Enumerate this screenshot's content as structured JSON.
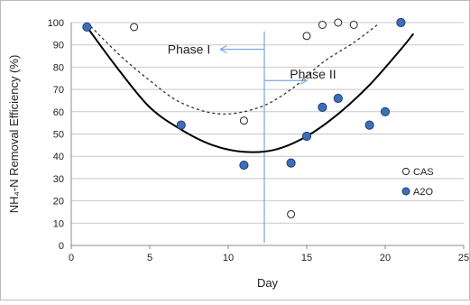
{
  "chart_data": {
    "type": "scatter",
    "xlabel": "Day",
    "ylabel": "NH₄-N Removal Efficiency (%)",
    "xlim": [
      0,
      25
    ],
    "ylim": [
      0,
      100
    ],
    "xticks": [
      0,
      5,
      10,
      15,
      20,
      25
    ],
    "yticks": [
      0,
      10,
      20,
      30,
      40,
      50,
      60,
      70,
      80,
      90,
      100
    ],
    "grid": "horizontal",
    "legend_position": "bottom-right",
    "series": [
      {
        "name": "CAS",
        "marker": "open-circle",
        "color": "#222222",
        "points": [
          [
            1,
            98
          ],
          [
            4,
            98
          ],
          [
            11,
            56
          ],
          [
            14,
            14
          ],
          [
            15,
            94
          ],
          [
            16,
            99
          ],
          [
            17,
            100
          ],
          [
            18,
            99
          ]
        ]
      },
      {
        "name": "A2O",
        "marker": "filled-circle",
        "color": "#3d6fb5",
        "points": [
          [
            1,
            98
          ],
          [
            7,
            54
          ],
          [
            11,
            36
          ],
          [
            14,
            37
          ],
          [
            15,
            49
          ],
          [
            16,
            62
          ],
          [
            17,
            66
          ],
          [
            19,
            54
          ],
          [
            20,
            60
          ],
          [
            21,
            100
          ]
        ]
      }
    ],
    "trendlines": [
      {
        "series": "CAS",
        "style": "dashed",
        "color": "#333333",
        "points": [
          [
            1,
            100
          ],
          [
            3,
            86
          ],
          [
            5,
            74
          ],
          [
            7,
            64
          ],
          [
            9.5,
            59
          ],
          [
            12,
            62
          ],
          [
            14,
            70
          ],
          [
            16,
            82
          ],
          [
            18,
            91
          ],
          [
            19.5,
            99
          ]
        ]
      },
      {
        "series": "A2O",
        "style": "solid",
        "color": "#000000",
        "points": [
          [
            1,
            98
          ],
          [
            3,
            79
          ],
          [
            5,
            62
          ],
          [
            7,
            52
          ],
          [
            9,
            45
          ],
          [
            11,
            42
          ],
          [
            13,
            43
          ],
          [
            15,
            49
          ],
          [
            17,
            59
          ],
          [
            19,
            72
          ],
          [
            21,
            88
          ],
          [
            21.8,
            95
          ]
        ]
      }
    ],
    "divider": {
      "x": 12.3,
      "color": "#7aa7e0"
    },
    "annotations": [
      {
        "text": "Phase I",
        "x": 7.5,
        "y": 88,
        "arrow": "left",
        "arrow_from": 12.3,
        "arrow_to": 9.5,
        "arrow_y": 88
      },
      {
        "text": "Phase II",
        "x": 15.4,
        "y": 77,
        "arrow": "right",
        "arrow_from": 12.3,
        "arrow_to": 15.0,
        "arrow_y": 74
      }
    ]
  }
}
